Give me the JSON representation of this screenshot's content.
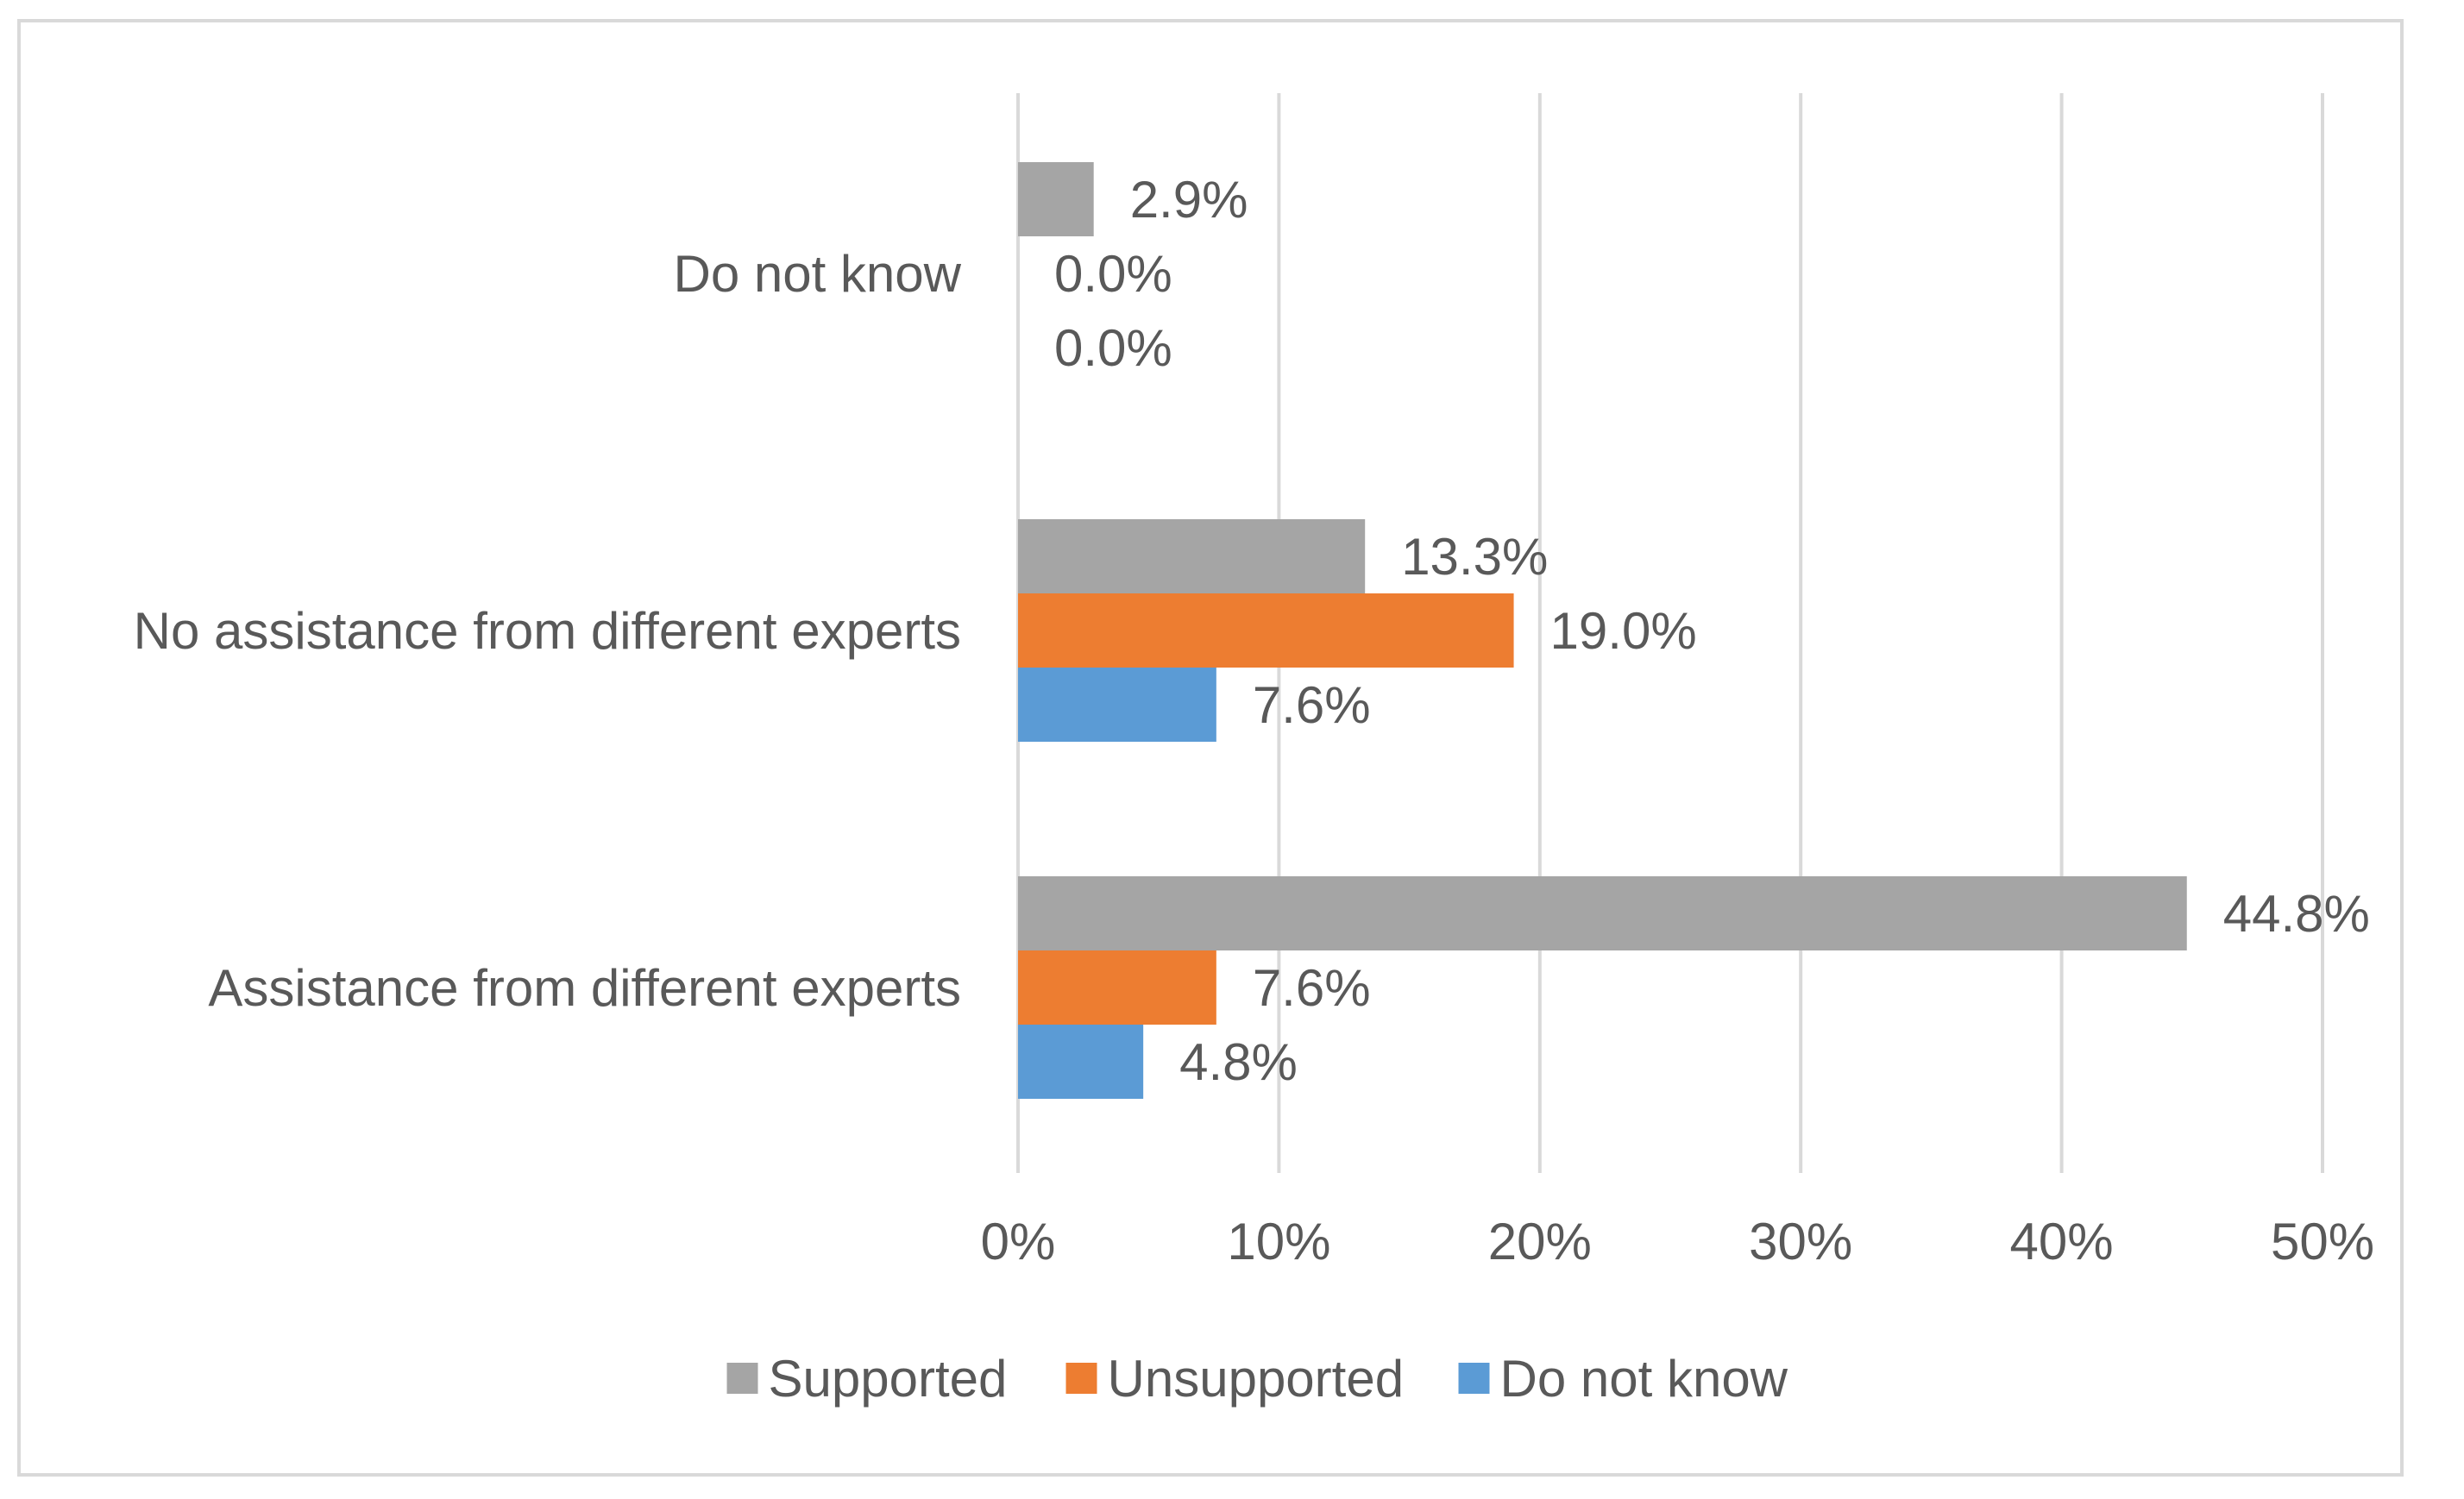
{
  "chart_data": {
    "type": "bar",
    "orientation": "horizontal",
    "categories": [
      "Do not know",
      "No assistance from different experts",
      "Assistance from different experts"
    ],
    "series": [
      {
        "name": "Supported",
        "color": "#a5a5a5",
        "values": [
          2.9,
          13.3,
          44.8
        ],
        "labels": [
          "2.9%",
          "13.3%",
          "44.8%"
        ]
      },
      {
        "name": "Unsupported",
        "color": "#ed7d31",
        "values": [
          0.0,
          19.0,
          7.6
        ],
        "labels": [
          "0.0%",
          "19.0%",
          "7.6%"
        ]
      },
      {
        "name": "Do not know",
        "color": "#5b9bd5",
        "values": [
          0.0,
          7.6,
          4.8
        ],
        "labels": [
          "0.0%",
          "7.6%",
          "4.8%"
        ]
      }
    ],
    "xlim": [
      0,
      50
    ],
    "xticks": [
      0,
      10,
      20,
      30,
      40,
      50
    ],
    "xtick_labels": [
      "0%",
      "10%",
      "20%",
      "30%",
      "40%",
      "50%"
    ],
    "grid": true,
    "legend_position": "bottom",
    "gridline_color": "#d9d9d9"
  }
}
